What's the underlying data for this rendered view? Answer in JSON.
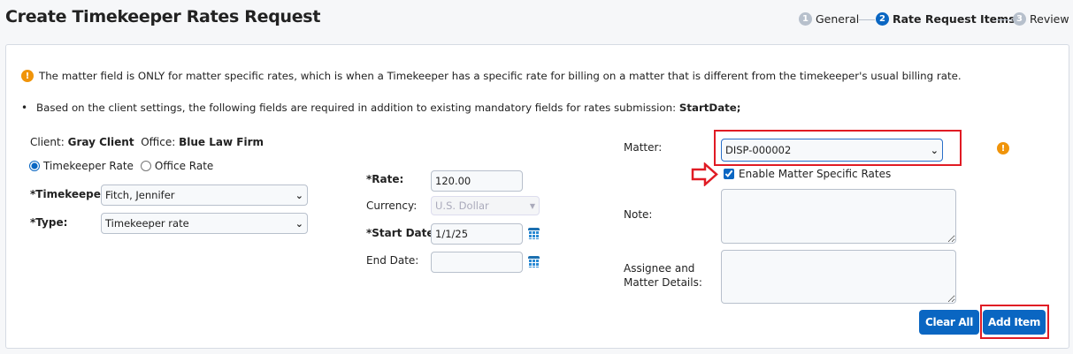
{
  "title": "Create Timekeeper Rates Request",
  "steps": [
    {
      "num": "1",
      "label": "General"
    },
    {
      "num": "2",
      "label": "Rate Request Items"
    },
    {
      "num": "3",
      "label": "Review"
    }
  ],
  "notice": "The matter field is ONLY for matter specific rates, which is when a Timekeeper has a specific rate for billing on a matter that is different from the timekeeper's usual billing rate.",
  "required_note": "Based on the client settings, the following fields are required in addition to existing mandatory fields for rates submission:",
  "required_fields": "StartDate;",
  "client_label": "Client:",
  "client": "Gray Client",
  "office_label": "Office:",
  "office": "Blue Law Firm",
  "radio_timekeeper": "Timekeeper Rate",
  "radio_office": "Office Rate",
  "timekeeper_label": "*Timekeeper:",
  "timekeeper": "Fitch, Jennifer",
  "type_label": "*Type:",
  "type": "Timekeeper rate",
  "rate_label": "*Rate:",
  "rate": "120.00",
  "currency_label": "Currency:",
  "currency": "U.S. Dollar",
  "start_label": "*Start Date:",
  "start": "1/1/25",
  "end_label": "End Date:",
  "end": "",
  "matter_label": "Matter:",
  "matter": "DISP-000002",
  "enable_label": "Enable Matter Specific Rates",
  "note_label": "Note:",
  "assignee_label1": "Assignee and",
  "assignee_label2": "Matter Details:",
  "clear": "Clear All",
  "add": "Add Item",
  "colors": {
    "accent": "#0a66c2",
    "highlight": "#e01b24",
    "warning": "#f0940a"
  }
}
